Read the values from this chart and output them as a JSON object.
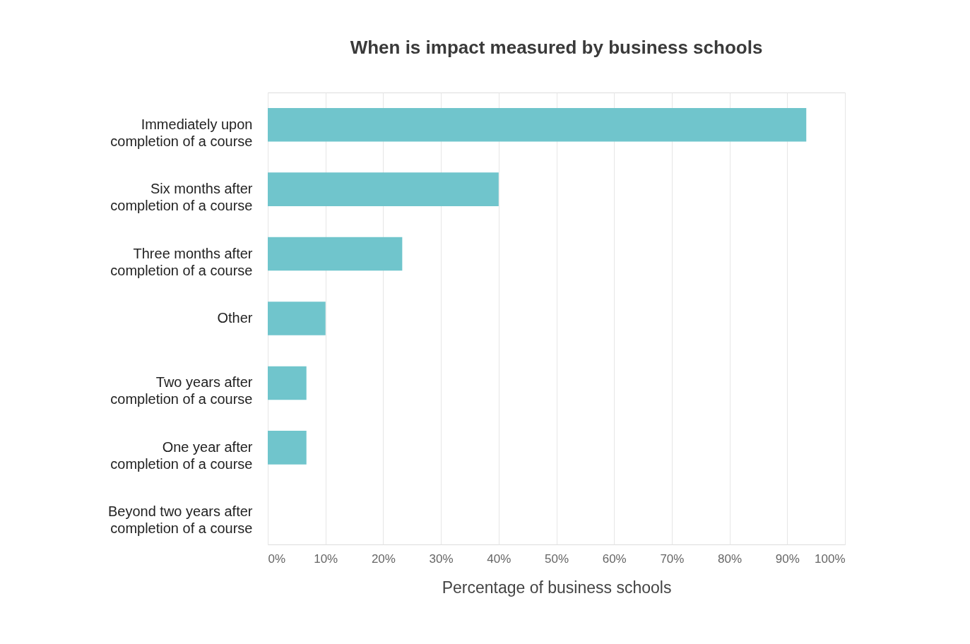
{
  "chart_data": {
    "type": "bar",
    "orientation": "horizontal",
    "title": "When is impact measured by business schools",
    "xlabel": "Percentage of  business schools",
    "categories": [
      "Immediately upon\ncompletion of  a course",
      "Six months after\ncompletion of  a course",
      "Three months after\ncompletion of  a course",
      "Other",
      "Two years after\ncompletion of  a course",
      "One year after\ncompletion of  a course",
      "Beyond two years after\ncompletion of  a course"
    ],
    "values": [
      93.3,
      40,
      23.3,
      10,
      6.7,
      6.7,
      0
    ],
    "color": "#70c5cc",
    "xlim": [
      0,
      100
    ],
    "xticks": [
      {
        "value": 0,
        "label": "0%"
      },
      {
        "value": 10,
        "label": "10%"
      },
      {
        "value": 20,
        "label": "20%"
      },
      {
        "value": 30,
        "label": "30%"
      },
      {
        "value": 40,
        "label": "40%"
      },
      {
        "value": 50,
        "label": "50%"
      },
      {
        "value": 60,
        "label": "60%"
      },
      {
        "value": 70,
        "label": "70%"
      },
      {
        "value": 80,
        "label": "80%"
      },
      {
        "value": 90,
        "label": "90%"
      },
      {
        "value": 100,
        "label": "100%"
      }
    ],
    "grid": "x"
  }
}
